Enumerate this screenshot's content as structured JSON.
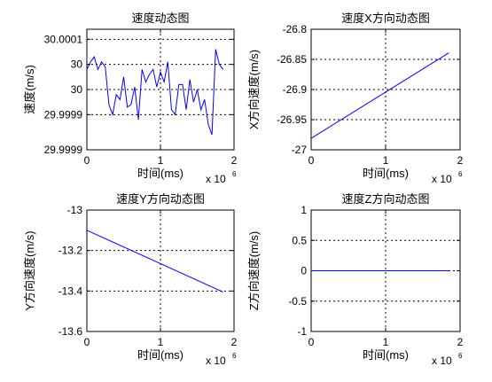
{
  "chart_data": [
    {
      "type": "line",
      "title": "速度动态图",
      "xlabel": "时间(ms)",
      "ylabel": "速度(m/s)",
      "x_multiplier": "x 10",
      "x_multiplier_exp": "6",
      "xlim": [
        0,
        2
      ],
      "ylim": [
        29.99988,
        30.00012
      ],
      "grid": true,
      "xticks": [
        {
          "v": 0,
          "label": "0"
        },
        {
          "v": 1,
          "label": "1"
        },
        {
          "v": 2,
          "label": "2"
        }
      ],
      "yticks": [
        {
          "v": 30.0001,
          "label": "30.0001"
        },
        {
          "v": 30.00005,
          "label": "30"
        },
        {
          "v": 30.0,
          "label": "30"
        },
        {
          "v": 29.99995,
          "label": "29.9999"
        },
        {
          "v": 29.99988,
          "label": "29.9999"
        }
      ],
      "color": "#0000ff",
      "series": [
        {
          "x": [
            0.0,
            0.05,
            0.1,
            0.15,
            0.2,
            0.25,
            0.3,
            0.35,
            0.4,
            0.45,
            0.5,
            0.55,
            0.6,
            0.65,
            0.7,
            0.75,
            0.8,
            0.85,
            0.9,
            0.95,
            1.0,
            1.05,
            1.1,
            1.15,
            1.2,
            1.25,
            1.3,
            1.35,
            1.4,
            1.45,
            1.5,
            1.55,
            1.6,
            1.65,
            1.7,
            1.75,
            1.8,
            1.85
          ],
          "y": [
            30.00004,
            30.000055,
            30.000065,
            30.00004,
            30.000055,
            30.000045,
            29.99997,
            29.99995,
            29.99999,
            29.99998,
            30.000025,
            29.999965,
            29.99997,
            30.000005,
            29.99994,
            30.00004,
            30.000015,
            30.00003,
            30.00004,
            30.000005,
            30.000035,
            30.000015,
            30.000055,
            29.99996,
            29.99995,
            30.00001,
            30.00001,
            29.99996,
            30.00002,
            29.999975,
            30.0,
            29.99996,
            29.99998,
            29.99993,
            29.99991,
            30.00008,
            30.00005,
            30.00004
          ]
        }
      ]
    },
    {
      "type": "line",
      "title": "速度X方向动态图",
      "xlabel": "时间(ms)",
      "ylabel": "X方向速度(m/s)",
      "x_multiplier": "x 10",
      "x_multiplier_exp": "6",
      "xlim": [
        0,
        2
      ],
      "ylim": [
        -27,
        -26.8
      ],
      "grid": true,
      "xticks": [
        {
          "v": 0,
          "label": "0"
        },
        {
          "v": 1,
          "label": "1"
        },
        {
          "v": 2,
          "label": "2"
        }
      ],
      "yticks": [
        {
          "v": -26.8,
          "label": "-26.8"
        },
        {
          "v": -26.85,
          "label": "-26.85"
        },
        {
          "v": -26.9,
          "label": "-26.9"
        },
        {
          "v": -26.95,
          "label": "-26.95"
        },
        {
          "v": -27,
          "label": "-27"
        }
      ],
      "color": "#0000ff",
      "series": [
        {
          "x": [
            0,
            1.85
          ],
          "y": [
            -26.981,
            -26.839
          ]
        }
      ]
    },
    {
      "type": "line",
      "title": "速度Y方向动态图",
      "xlabel": "时间(ms)",
      "ylabel": "Y方向速度(m/s)",
      "x_multiplier": "x 10",
      "x_multiplier_exp": "6",
      "xlim": [
        0,
        2
      ],
      "ylim": [
        -13.6,
        -13
      ],
      "grid": true,
      "xticks": [
        {
          "v": 0,
          "label": "0"
        },
        {
          "v": 1,
          "label": "1"
        },
        {
          "v": 2,
          "label": "2"
        }
      ],
      "yticks": [
        {
          "v": -13,
          "label": "-13"
        },
        {
          "v": -13.2,
          "label": "-13.2"
        },
        {
          "v": -13.4,
          "label": "-13.4"
        },
        {
          "v": -13.6,
          "label": "-13.6"
        }
      ],
      "color": "#0000ff",
      "series": [
        {
          "x": [
            0,
            1.85
          ],
          "y": [
            -13.1,
            -13.405
          ]
        }
      ]
    },
    {
      "type": "line",
      "title": "速度Z方向动态图",
      "xlabel": "时间(ms)",
      "ylabel": "Z方向速度(m/s)",
      "x_multiplier": "x 10",
      "x_multiplier_exp": "6",
      "xlim": [
        0,
        2
      ],
      "ylim": [
        -1,
        1
      ],
      "grid": true,
      "xticks": [
        {
          "v": 0,
          "label": "0"
        },
        {
          "v": 1,
          "label": "1"
        },
        {
          "v": 2,
          "label": "2"
        }
      ],
      "yticks": [
        {
          "v": 1,
          "label": "1"
        },
        {
          "v": 0.5,
          "label": "0.5"
        },
        {
          "v": 0,
          "label": "0"
        },
        {
          "v": -0.5,
          "label": "-0.5"
        },
        {
          "v": -1,
          "label": "-1"
        }
      ],
      "color": "#0000ff",
      "series": [
        {
          "x": [
            0,
            1.85
          ],
          "y": [
            0,
            0
          ]
        }
      ]
    }
  ]
}
